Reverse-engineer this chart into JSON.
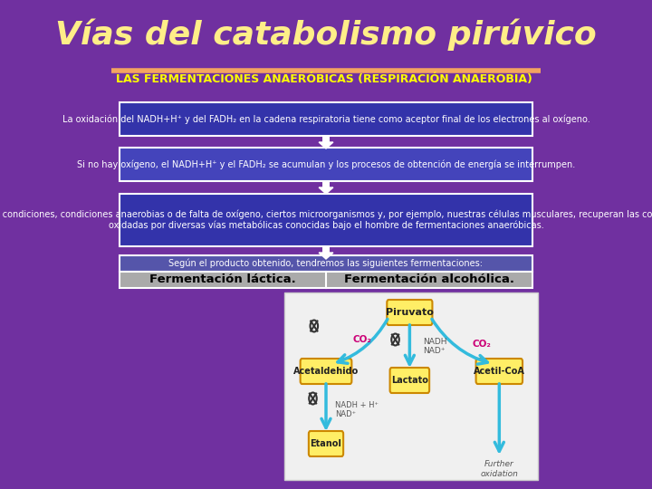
{
  "title": "Vías del catabolismo pirúvico",
  "title_color": "#FFEE88",
  "title_bg": "#7030A0",
  "subtitle": "LAS FERMENTACIONES ANAERÓBICAS (RESPIRACIÓN ANAEROBIA)",
  "subtitle_color": "#FFFF00",
  "subtitle_bg": "#7030A0",
  "divider_color": "#F4A460",
  "bg_color": "#7030A0",
  "box1_text": "La oxidación del NADH+H⁺ y del FADH₂ en la cadena respiratoria tiene como aceptor final de los electrones al oxígeno.",
  "box2_text": "Si no hay oxígeno, el NADH+H⁺ y el FADH₂ se acumulan y los procesos de obtención de energía se interrumpen.",
  "box3_text": "En estas condiciones, condiciones anaerobias o de falta de oxígeno, ciertos microorganismos y, por ejemplo, nuestras células musculares, recuperan las coenzimas\noxidadas por diversas vías metabólicas conocidas bajo el hombre de fermentaciones anaeróbicas.",
  "box4_text": "Según el producto obtenido, tendremos las siguientes fermentaciones:",
  "box_bg_1": "#3333AA",
  "box_bg_2": "#4444BB",
  "box_bg_3": "#3333AA",
  "box4_bg": "#5555AA",
  "box_text_color": "#FFFFFF",
  "ferment1": "Fermentación láctica.",
  "ferment2": "Fermentación alcohólica.",
  "ferment_color": "#000000",
  "ferment_bg": "#AAAAAA",
  "arrow_fill": "#FFFFFF",
  "img_bg": "#F0F0F0",
  "img_border": "#CCCCCC",
  "yellow_box_fill": "#FFEE66",
  "yellow_box_edge": "#CC8800",
  "blue_arrow": "#33BBDD",
  "co2_color": "#CC0077",
  "label_color": "#555555"
}
